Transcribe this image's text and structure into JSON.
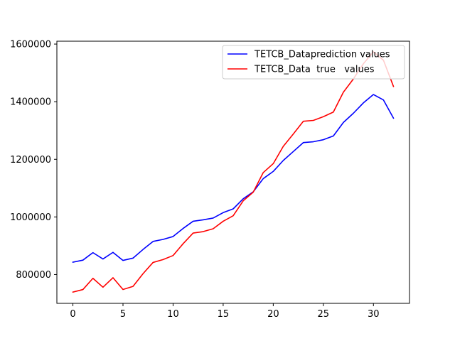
{
  "chart_data": {
    "type": "line",
    "title": "",
    "xlabel": "",
    "ylabel": "",
    "xlim": [
      -1.6,
      33.6
    ],
    "ylim": [
      700000,
      1610000
    ],
    "x_ticks": [
      0,
      5,
      10,
      15,
      20,
      25,
      30
    ],
    "y_ticks": [
      800000,
      1000000,
      1200000,
      1400000,
      1600000
    ],
    "x_tick_labels": [
      "0",
      "5",
      "10",
      "15",
      "20",
      "25",
      "30"
    ],
    "y_tick_labels": [
      "800000",
      "1000000",
      "1200000",
      "1400000",
      "1600000"
    ],
    "grid": false,
    "legend_position": "top-right",
    "x": [
      0,
      1,
      2,
      3,
      4,
      5,
      6,
      7,
      8,
      9,
      10,
      11,
      12,
      13,
      14,
      15,
      16,
      17,
      18,
      19,
      20,
      21,
      22,
      23,
      24,
      25,
      26,
      27,
      28,
      29,
      30,
      31,
      32
    ],
    "series": [
      {
        "name": "TETCB_Dataprediction values",
        "color": "#0000ff",
        "values": [
          843000,
          850000,
          876000,
          854000,
          877000,
          849000,
          857000,
          887000,
          915000,
          922000,
          932000,
          960000,
          985000,
          990000,
          996000,
          1015000,
          1028000,
          1063000,
          1087000,
          1133000,
          1158000,
          1196000,
          1227000,
          1258000,
          1261000,
          1268000,
          1281000,
          1328000,
          1360000,
          1396000,
          1425000,
          1406000,
          1343000
        ]
      },
      {
        "name": "TETCB_Data  true   values",
        "color": "#ff0000",
        "values": [
          739000,
          748000,
          787000,
          756000,
          789000,
          748000,
          759000,
          803000,
          842000,
          852000,
          866000,
          907000,
          944000,
          949000,
          959000,
          985000,
          1004000,
          1056000,
          1086000,
          1154000,
          1185000,
          1245000,
          1288000,
          1332000,
          1335000,
          1348000,
          1364000,
          1433000,
          1479000,
          1532000,
          1573000,
          1544000,
          1453000
        ]
      }
    ]
  }
}
